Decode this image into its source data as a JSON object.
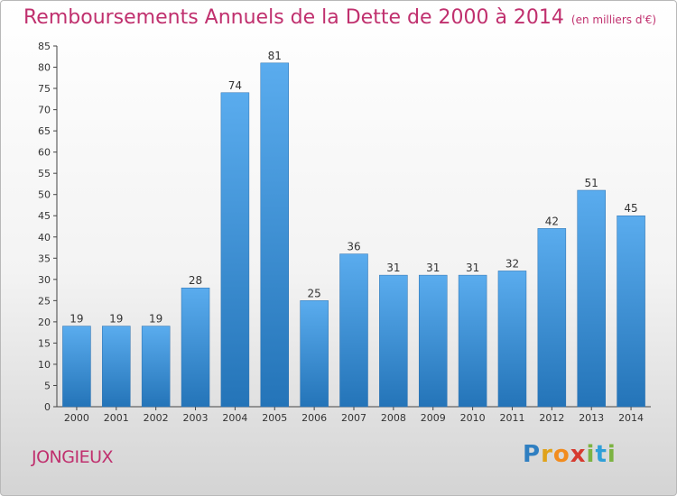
{
  "chart_data": {
    "type": "bar",
    "title": "Remboursements Annuels de la Dette de 2000 à 2014",
    "subtitle": "(en milliers d'€)",
    "categories": [
      "2000",
      "2001",
      "2002",
      "2003",
      "2004",
      "2005",
      "2006",
      "2007",
      "2008",
      "2009",
      "2010",
      "2011",
      "2012",
      "2013",
      "2014"
    ],
    "values": [
      19,
      19,
      19,
      28,
      74,
      81,
      25,
      36,
      31,
      31,
      31,
      32,
      42,
      51,
      45
    ],
    "ylim": [
      0,
      85
    ],
    "yticks": [
      0,
      5,
      10,
      15,
      20,
      25,
      30,
      35,
      40,
      45,
      50,
      55,
      60,
      65,
      70,
      75,
      80,
      85
    ],
    "grid": false,
    "bar_color": "#3d8fd4"
  },
  "commune": "JONGIEUX",
  "logo": "Proxiti"
}
